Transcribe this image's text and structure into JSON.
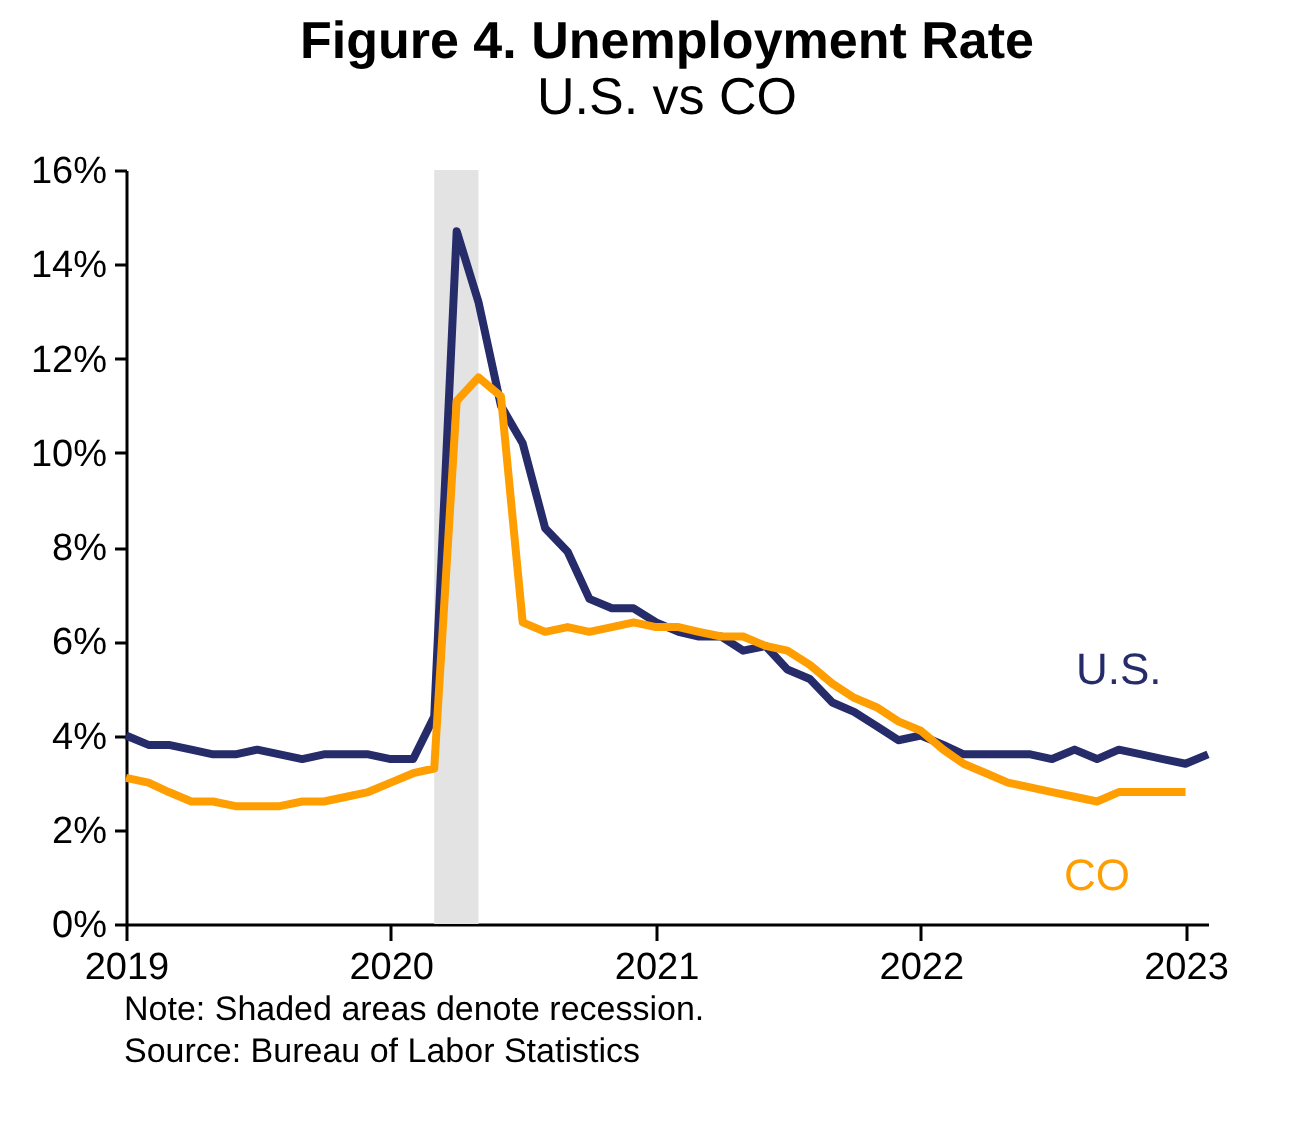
{
  "chart_data": {
    "type": "line",
    "title": "Figure 4. Unemployment Rate",
    "subtitle": "U.S. vs CO",
    "x": [
      "2019-01",
      "2019-02",
      "2019-03",
      "2019-04",
      "2019-05",
      "2019-06",
      "2019-07",
      "2019-08",
      "2019-09",
      "2019-10",
      "2019-11",
      "2019-12",
      "2020-01",
      "2020-02",
      "2020-03",
      "2020-04",
      "2020-05",
      "2020-06",
      "2020-07",
      "2020-08",
      "2020-09",
      "2020-10",
      "2020-11",
      "2020-12",
      "2021-01",
      "2021-02",
      "2021-03",
      "2021-04",
      "2021-05",
      "2021-06",
      "2021-07",
      "2021-08",
      "2021-09",
      "2021-10",
      "2021-11",
      "2021-12",
      "2022-01",
      "2022-02",
      "2022-03",
      "2022-04",
      "2022-05",
      "2022-06",
      "2022-07",
      "2022-08",
      "2022-09",
      "2022-10",
      "2022-11",
      "2022-12",
      "2023-01",
      "2023-02"
    ],
    "series": [
      {
        "name": "U.S.",
        "color": "#262b69",
        "values": [
          4.0,
          3.8,
          3.8,
          3.7,
          3.6,
          3.6,
          3.7,
          3.6,
          3.5,
          3.6,
          3.6,
          3.6,
          3.5,
          3.5,
          4.4,
          14.7,
          13.2,
          11.0,
          10.2,
          8.4,
          7.9,
          6.9,
          6.7,
          6.7,
          6.4,
          6.2,
          6.1,
          6.1,
          5.8,
          5.9,
          5.4,
          5.2,
          4.7,
          4.5,
          4.2,
          3.9,
          4.0,
          3.8,
          3.6,
          3.6,
          3.6,
          3.6,
          3.5,
          3.7,
          3.5,
          3.7,
          3.6,
          3.5,
          3.4,
          3.6
        ]
      },
      {
        "name": "CO",
        "color": "#ff9e00",
        "values": [
          3.1,
          3.0,
          2.8,
          2.6,
          2.6,
          2.5,
          2.5,
          2.5,
          2.6,
          2.6,
          2.7,
          2.8,
          3.0,
          3.2,
          3.3,
          11.1,
          11.6,
          11.2,
          6.4,
          6.2,
          6.3,
          6.2,
          6.3,
          6.4,
          6.3,
          6.3,
          6.2,
          6.1,
          6.1,
          5.9,
          5.8,
          5.5,
          5.1,
          4.8,
          4.6,
          4.3,
          4.1,
          3.7,
          3.4,
          3.2,
          3.0,
          2.9,
          2.8,
          2.7,
          2.6,
          2.8,
          2.8,
          2.8,
          2.8,
          null
        ]
      }
    ],
    "xlim": [
      "2019-01",
      "2023-02"
    ],
    "xticks": [
      {
        "value": "2019-01",
        "label": "2019"
      },
      {
        "value": "2020-01",
        "label": "2020"
      },
      {
        "value": "2021-01",
        "label": "2021"
      },
      {
        "value": "2022-01",
        "label": "2022"
      },
      {
        "value": "2023-01",
        "label": "2023"
      }
    ],
    "ylim": [
      0,
      16
    ],
    "yticks": [
      {
        "value": 0,
        "label": "0%"
      },
      {
        "value": 2,
        "label": "2%"
      },
      {
        "value": 4,
        "label": "4%"
      },
      {
        "value": 6,
        "label": "6%"
      },
      {
        "value": 8,
        "label": "8%"
      },
      {
        "value": 10,
        "label": "10%"
      },
      {
        "value": 12,
        "label": "12%"
      },
      {
        "value": 14,
        "label": "14%"
      },
      {
        "value": 16,
        "label": "16%"
      }
    ],
    "bands": [
      {
        "axis": "x",
        "from": "2020-03",
        "to": "2020-05",
        "color": "#e3e3e3"
      }
    ],
    "legend": false,
    "grid": false,
    "annotations": [
      "Note: Shaded areas denote recession.",
      "Source: Bureau of Labor Statistics"
    ]
  }
}
